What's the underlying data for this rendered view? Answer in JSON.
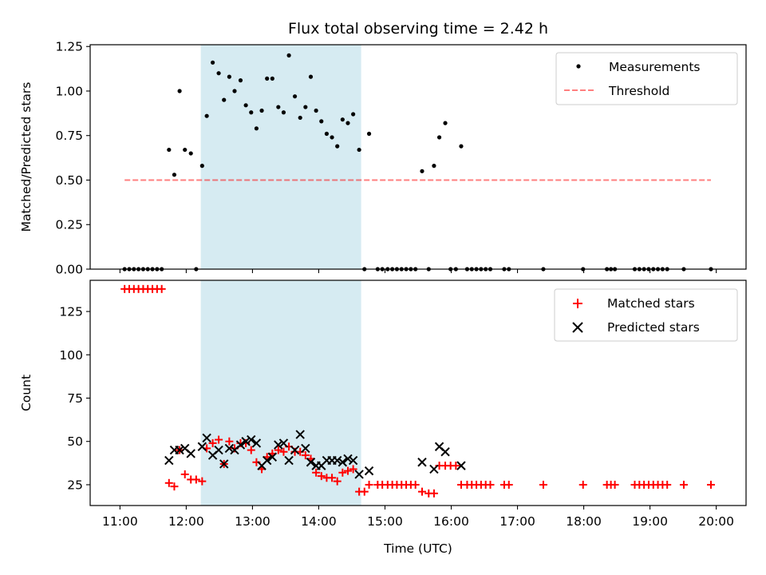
{
  "chart_data": {
    "title": "Flux total observing time = 2.42 h",
    "xlabel": "Time (UTC)",
    "x_tick_labels": [
      "11:00",
      "12:00",
      "13:00",
      "14:00",
      "15:00",
      "16:00",
      "17:00",
      "18:00",
      "19:00",
      "20:00"
    ],
    "x_ticks_hours": [
      11,
      12,
      13,
      14,
      15,
      16,
      17,
      18,
      19,
      20
    ],
    "xlim_hours": [
      10.55,
      20.45
    ],
    "shaded_interval_hours": [
      12.22,
      14.64
    ],
    "shade_color": "#add8e6",
    "panels": [
      {
        "type": "scatter",
        "ylabel": "Matched/Predicted stars",
        "ylim": [
          0,
          1.26
        ],
        "y_ticks": [
          0,
          0.25,
          0.5,
          0.75,
          1.0,
          1.25
        ],
        "y_tick_labels": [
          "0.00",
          "0.25",
          "0.50",
          "0.75",
          "1.00",
          "1.25"
        ],
        "legend": [
          "Measurements",
          "Threshold"
        ],
        "legend_position": "top-right",
        "threshold": {
          "name": "Threshold",
          "value": 0.5,
          "x_range_hours": [
            11.07,
            19.92
          ],
          "color": "#ff0000",
          "opacity": 0.5
        },
        "series": [
          {
            "name": "Measurements",
            "color": "#000000",
            "points": [
              [
                11.07,
                0
              ],
              [
                11.14,
                0
              ],
              [
                11.21,
                0
              ],
              [
                11.28,
                0
              ],
              [
                11.35,
                0
              ],
              [
                11.42,
                0
              ],
              [
                11.49,
                0
              ],
              [
                11.56,
                0
              ],
              [
                11.63,
                0
              ],
              [
                11.74,
                0.67
              ],
              [
                11.82,
                0.53
              ],
              [
                11.9,
                1.0
              ],
              [
                11.98,
                0.67
              ],
              [
                12.07,
                0.65
              ],
              [
                12.15,
                0
              ],
              [
                12.24,
                0.58
              ],
              [
                12.31,
                0.86
              ],
              [
                12.4,
                1.16
              ],
              [
                12.49,
                1.1
              ],
              [
                12.57,
                0.95
              ],
              [
                12.65,
                1.08
              ],
              [
                12.73,
                1.0
              ],
              [
                12.82,
                1.06
              ],
              [
                12.9,
                0.92
              ],
              [
                12.98,
                0.88
              ],
              [
                13.06,
                0.79
              ],
              [
                13.14,
                0.89
              ],
              [
                13.22,
                1.07
              ],
              [
                13.3,
                1.07
              ],
              [
                13.39,
                0.91
              ],
              [
                13.47,
                0.88
              ],
              [
                13.55,
                1.2
              ],
              [
                13.64,
                0.97
              ],
              [
                13.72,
                0.85
              ],
              [
                13.8,
                0.91
              ],
              [
                13.88,
                1.08
              ],
              [
                13.96,
                0.89
              ],
              [
                14.04,
                0.83
              ],
              [
                14.12,
                0.76
              ],
              [
                14.2,
                0.74
              ],
              [
                14.28,
                0.69
              ],
              [
                14.36,
                0.84
              ],
              [
                14.44,
                0.82
              ],
              [
                14.52,
                0.87
              ],
              [
                14.61,
                0.67
              ],
              [
                14.69,
                0
              ],
              [
                14.76,
                0.76
              ],
              [
                14.89,
                0
              ],
              [
                14.96,
                0
              ],
              [
                15.04,
                0
              ],
              [
                15.11,
                0
              ],
              [
                15.18,
                0
              ],
              [
                15.25,
                0
              ],
              [
                15.32,
                0
              ],
              [
                15.39,
                0
              ],
              [
                15.46,
                0
              ],
              [
                15.56,
                0.55
              ],
              [
                15.66,
                0
              ],
              [
                15.74,
                0.58
              ],
              [
                15.82,
                0.74
              ],
              [
                15.91,
                0.82
              ],
              [
                15.99,
                0
              ],
              [
                16.07,
                0
              ],
              [
                16.15,
                0.69
              ],
              [
                16.24,
                0
              ],
              [
                16.31,
                0
              ],
              [
                16.38,
                0
              ],
              [
                16.45,
                0
              ],
              [
                16.52,
                0
              ],
              [
                16.59,
                0
              ],
              [
                16.8,
                0
              ],
              [
                16.87,
                0
              ],
              [
                17.39,
                0
              ],
              [
                17.99,
                0
              ],
              [
                18.35,
                0
              ],
              [
                18.41,
                0
              ],
              [
                18.47,
                0
              ],
              [
                18.77,
                0
              ],
              [
                18.84,
                0
              ],
              [
                18.91,
                0
              ],
              [
                18.98,
                0
              ],
              [
                19.05,
                0
              ],
              [
                19.12,
                0
              ],
              [
                19.19,
                0
              ],
              [
                19.26,
                0
              ],
              [
                19.51,
                0
              ],
              [
                19.92,
                0
              ]
            ]
          }
        ]
      },
      {
        "type": "scatter",
        "ylabel": "Count",
        "ylim": [
          13,
          143
        ],
        "y_ticks": [
          25,
          50,
          75,
          100,
          125
        ],
        "y_tick_labels": [
          "25",
          "50",
          "75",
          "100",
          "125"
        ],
        "legend": [
          "Matched stars",
          "Predicted stars"
        ],
        "legend_position": "top-right",
        "series": [
          {
            "name": "Matched stars",
            "marker": "+",
            "color": "#ff0000",
            "points": [
              [
                11.07,
                138
              ],
              [
                11.14,
                138
              ],
              [
                11.21,
                138
              ],
              [
                11.28,
                138
              ],
              [
                11.35,
                138
              ],
              [
                11.42,
                138
              ],
              [
                11.49,
                138
              ],
              [
                11.56,
                138
              ],
              [
                11.63,
                138
              ],
              [
                11.74,
                26
              ],
              [
                11.82,
                24
              ],
              [
                11.9,
                45
              ],
              [
                11.98,
                31
              ],
              [
                12.07,
                28
              ],
              [
                12.15,
                28
              ],
              [
                12.24,
                27
              ],
              [
                12.31,
                46
              ],
              [
                12.4,
                49
              ],
              [
                12.49,
                51
              ],
              [
                12.57,
                37
              ],
              [
                12.65,
                50
              ],
              [
                12.73,
                46
              ],
              [
                12.82,
                49
              ],
              [
                12.9,
                49
              ],
              [
                12.98,
                45
              ],
              [
                13.06,
                38
              ],
              [
                13.14,
                34
              ],
              [
                13.22,
                41
              ],
              [
                13.3,
                43
              ],
              [
                13.39,
                45
              ],
              [
                13.47,
                44
              ],
              [
                13.55,
                47
              ],
              [
                13.64,
                44
              ],
              [
                13.72,
                44
              ],
              [
                13.8,
                42
              ],
              [
                13.88,
                40
              ],
              [
                13.96,
                32
              ],
              [
                14.04,
                30
              ],
              [
                14.12,
                29
              ],
              [
                14.2,
                29
              ],
              [
                14.28,
                27
              ],
              [
                14.36,
                32
              ],
              [
                14.44,
                33
              ],
              [
                14.52,
                34
              ],
              [
                14.61,
                21
              ],
              [
                14.69,
                21
              ],
              [
                14.76,
                25
              ],
              [
                14.89,
                25
              ],
              [
                14.96,
                25
              ],
              [
                15.04,
                25
              ],
              [
                15.11,
                25
              ],
              [
                15.18,
                25
              ],
              [
                15.25,
                25
              ],
              [
                15.32,
                25
              ],
              [
                15.39,
                25
              ],
              [
                15.46,
                25
              ],
              [
                15.56,
                21
              ],
              [
                15.66,
                20
              ],
              [
                15.74,
                20
              ],
              [
                15.82,
                36
              ],
              [
                15.91,
                36
              ],
              [
                15.99,
                36
              ],
              [
                16.07,
                36
              ],
              [
                16.15,
                25
              ],
              [
                16.24,
                25
              ],
              [
                16.31,
                25
              ],
              [
                16.38,
                25
              ],
              [
                16.45,
                25
              ],
              [
                16.52,
                25
              ],
              [
                16.59,
                25
              ],
              [
                16.8,
                25
              ],
              [
                16.87,
                25
              ],
              [
                17.39,
                25
              ],
              [
                17.99,
                25
              ],
              [
                18.35,
                25
              ],
              [
                18.41,
                25
              ],
              [
                18.47,
                25
              ],
              [
                18.77,
                25
              ],
              [
                18.84,
                25
              ],
              [
                18.91,
                25
              ],
              [
                18.98,
                25
              ],
              [
                19.05,
                25
              ],
              [
                19.12,
                25
              ],
              [
                19.19,
                25
              ],
              [
                19.26,
                25
              ],
              [
                19.51,
                25
              ],
              [
                19.92,
                25
              ]
            ]
          },
          {
            "name": "Predicted stars",
            "marker": "x",
            "color": "#000000",
            "points": [
              [
                11.74,
                39
              ],
              [
                11.82,
                45
              ],
              [
                11.9,
                45
              ],
              [
                11.98,
                46
              ],
              [
                12.07,
                43
              ],
              [
                12.24,
                47
              ],
              [
                12.31,
                52
              ],
              [
                12.4,
                42
              ],
              [
                12.49,
                45
              ],
              [
                12.57,
                37
              ],
              [
                12.65,
                46
              ],
              [
                12.73,
                45
              ],
              [
                12.82,
                48
              ],
              [
                12.9,
                50
              ],
              [
                12.98,
                51
              ],
              [
                13.06,
                49
              ],
              [
                13.14,
                36
              ],
              [
                13.22,
                39
              ],
              [
                13.3,
                41
              ],
              [
                13.39,
                48
              ],
              [
                13.47,
                49
              ],
              [
                13.55,
                39
              ],
              [
                13.64,
                45
              ],
              [
                13.72,
                54
              ],
              [
                13.8,
                46
              ],
              [
                13.88,
                38
              ],
              [
                13.96,
                36
              ],
              [
                14.04,
                36
              ],
              [
                14.12,
                39
              ],
              [
                14.2,
                39
              ],
              [
                14.28,
                39
              ],
              [
                14.36,
                38
              ],
              [
                14.44,
                40
              ],
              [
                14.52,
                39
              ],
              [
                14.61,
                31
              ],
              [
                14.76,
                33
              ],
              [
                15.56,
                38
              ],
              [
                15.74,
                34
              ],
              [
                15.82,
                47
              ],
              [
                15.91,
                44
              ],
              [
                16.15,
                36
              ]
            ]
          }
        ]
      }
    ]
  }
}
